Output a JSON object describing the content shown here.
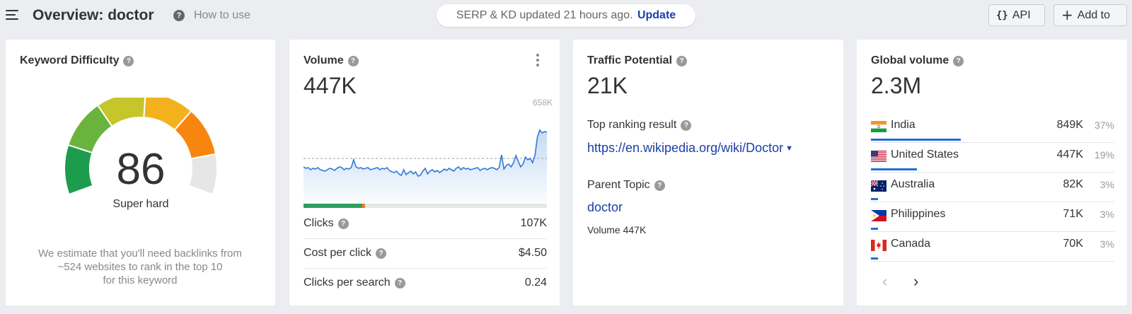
{
  "header": {
    "title": "Overview: doctor",
    "how_to_use": "How to use",
    "serp_status": "SERP & KD updated 21 hours ago.",
    "update_label": "Update",
    "api_label": "API",
    "add_label": "Add to"
  },
  "kd": {
    "title": "Keyword Difficulty",
    "score": "86",
    "level": 86,
    "label": "Super hard",
    "note_line1": "We estimate that you'll need backlinks from",
    "note_line2": "~524 websites to rank in the top 10",
    "note_line3": "for this keyword",
    "colors": [
      "#1e9c4e",
      "#6ab43e",
      "#c6c52a",
      "#f3b21d",
      "#f7860f",
      "#e6e6e6"
    ]
  },
  "volume": {
    "title": "Volume",
    "value": "447K",
    "chart_max_label": "658K",
    "clicks_share": 0.24,
    "rows": [
      {
        "label": "Clicks",
        "value": "107K"
      },
      {
        "label": "Cost per click",
        "value": "$4.50"
      },
      {
        "label": "Clicks per search",
        "value": "0.24"
      }
    ]
  },
  "traffic": {
    "title": "Traffic Potential",
    "value": "21K",
    "top_ranking_label": "Top ranking result",
    "top_ranking_url": "https://en.wikipedia.org/wiki/Doctor",
    "parent_topic_label": "Parent Topic",
    "parent_topic": "doctor",
    "parent_volume": "Volume 447K"
  },
  "global": {
    "title": "Global volume",
    "value": "2.3M",
    "countries": [
      {
        "name": "India",
        "volume": "849K",
        "pct": "37%",
        "share": 0.37,
        "flag": "india-flag-icon"
      },
      {
        "name": "United States",
        "volume": "447K",
        "pct": "19%",
        "share": 0.19,
        "flag": "us-flag-icon"
      },
      {
        "name": "Australia",
        "volume": "82K",
        "pct": "3%",
        "share": 0.03,
        "flag": "australia-flag-icon"
      },
      {
        "name": "Philippines",
        "volume": "71K",
        "pct": "3%",
        "share": 0.03,
        "flag": "philippines-flag-icon"
      },
      {
        "name": "Canada",
        "volume": "70K",
        "pct": "3%",
        "share": 0.03,
        "flag": "canada-flag-icon"
      }
    ]
  }
}
